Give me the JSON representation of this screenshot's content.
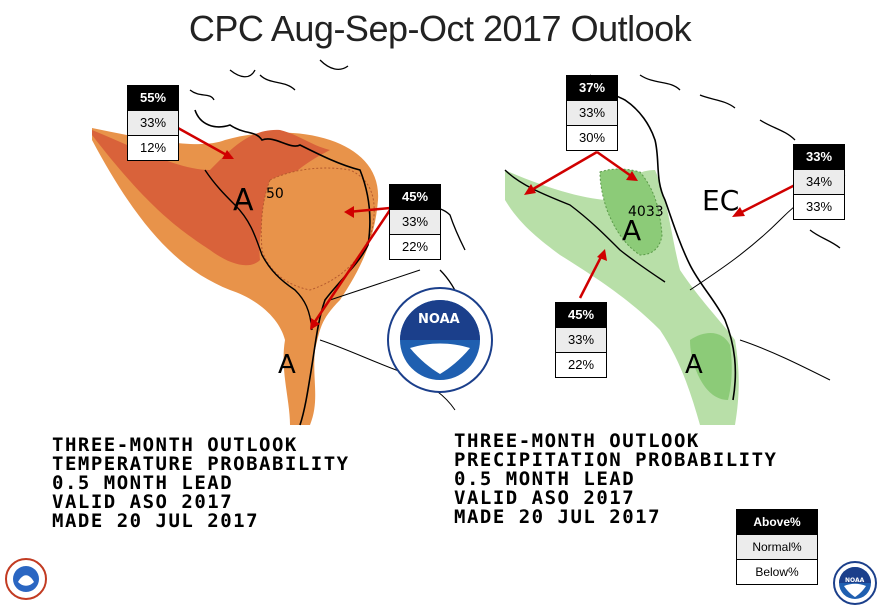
{
  "title": "CPC Aug-Sep-Oct 2017 Outlook",
  "temperature_map": {
    "probability_boxes": [
      {
        "above": "55%",
        "normal": "33%",
        "below": "12%"
      },
      {
        "above": "45%",
        "normal": "33%",
        "below": "22%"
      }
    ],
    "region_labels": {
      "a_main": "A",
      "contour": "50",
      "a_south": "A"
    },
    "caption": [
      "THREE-MONTH OUTLOOK",
      "TEMPERATURE PROBABILITY",
      "0.5 MONTH LEAD",
      "VALID ASO 2017",
      "MADE 20 JUL 2017"
    ],
    "colors": {
      "high": "#d9623a",
      "low": "#e8934a"
    }
  },
  "precipitation_map": {
    "probability_boxes": [
      {
        "above": "37%",
        "normal": "33%",
        "below": "30%"
      },
      {
        "above": "33%",
        "normal": "34%",
        "below": "33%"
      },
      {
        "above": "45%",
        "normal": "33%",
        "below": "22%"
      }
    ],
    "region_labels": {
      "a_main": "A",
      "contour": "4033",
      "ec": "EC",
      "a_south": "A"
    },
    "caption": [
      "THREE-MONTH OUTLOOK",
      "PRECIPITATION PROBABILITY",
      "0.5 MONTH LEAD",
      "VALID ASO 2017",
      "MADE 20 JUL 2017"
    ],
    "colors": {
      "light": "#b8dfa8",
      "dark": "#8ccb78"
    }
  },
  "legend": {
    "above": "Above%",
    "normal": "Normal%",
    "below": "Below%"
  },
  "logos": {
    "center": "NOAA",
    "bottom_right": "NOAA"
  }
}
